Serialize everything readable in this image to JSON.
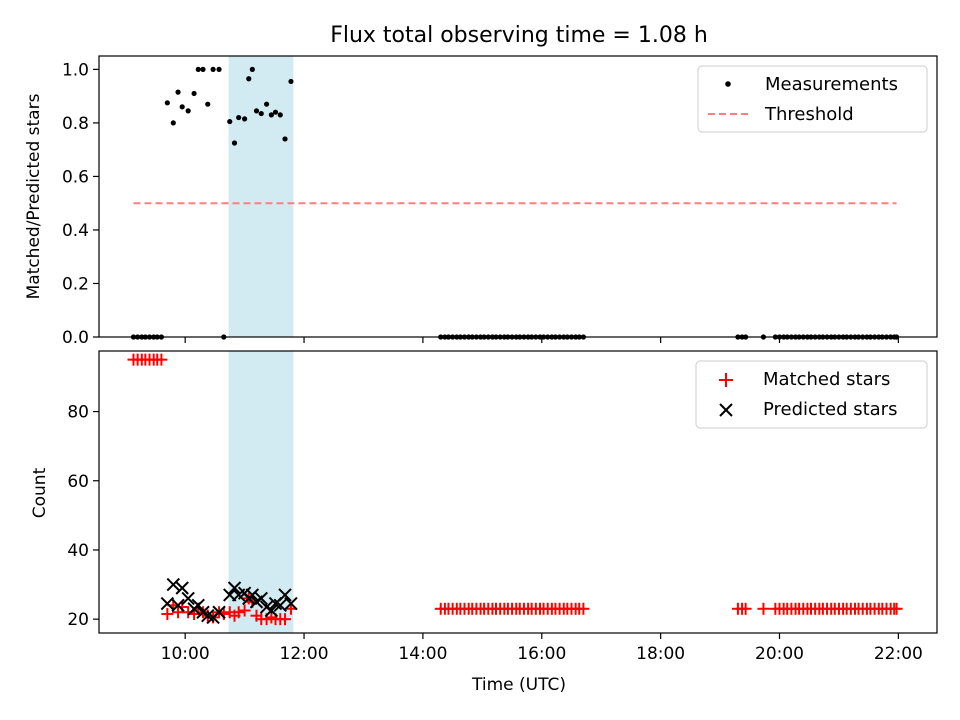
{
  "chart_data": {
    "title": "Flux total observing time = 1.08 h",
    "xlabel": "Time (UTC)",
    "xlim": [
      8.55,
      22.65
    ],
    "x_ticks": [
      10,
      12,
      14,
      16,
      18,
      20,
      22
    ],
    "x_tick_labels": [
      "10:00",
      "12:00",
      "14:00",
      "16:00",
      "18:00",
      "20:00",
      "22:00"
    ],
    "shaded_span": {
      "start": 10.73,
      "end": 11.82,
      "color": "#add8e6"
    },
    "panels": [
      {
        "type": "scatter",
        "ylabel": "Matched/Predicted stars",
        "ylim": [
          0,
          1.05
        ],
        "y_ticks": [
          0.0,
          0.2,
          0.4,
          0.6,
          0.8,
          1.0
        ],
        "y_tick_labels": [
          "0.0",
          "0.2",
          "0.4",
          "0.6",
          "0.8",
          "1.0"
        ],
        "legend": "top-right",
        "series": [
          {
            "name": "Measurements",
            "marker": "dot",
            "color": "#000000",
            "x": [
              9.13,
              9.2,
              9.27,
              9.33,
              9.4,
              9.47,
              9.53,
              9.6,
              9.7,
              9.8,
              9.88,
              9.95,
              10.05,
              10.15,
              10.22,
              10.3,
              10.38,
              10.47,
              10.57,
              10.65,
              10.75,
              10.83,
              10.9,
              11.0,
              11.07,
              11.13,
              11.2,
              11.28,
              11.37,
              11.45,
              11.52,
              11.6,
              11.68,
              11.78,
              14.3,
              14.37,
              14.43,
              14.5,
              14.57,
              14.63,
              14.7,
              14.77,
              14.83,
              14.9,
              14.97,
              15.03,
              15.1,
              15.17,
              15.23,
              15.3,
              15.37,
              15.43,
              15.5,
              15.57,
              15.63,
              15.7,
              15.77,
              15.83,
              15.9,
              15.97,
              16.03,
              16.1,
              16.17,
              16.23,
              16.3,
              16.37,
              16.43,
              16.5,
              16.57,
              16.63,
              16.7,
              19.3,
              19.37,
              19.43,
              19.73,
              19.93,
              20.0,
              20.07,
              20.13,
              20.2,
              20.27,
              20.33,
              20.4,
              20.47,
              20.53,
              20.6,
              20.67,
              20.73,
              20.8,
              20.87,
              20.93,
              21.0,
              21.07,
              21.13,
              21.2,
              21.27,
              21.33,
              21.4,
              21.47,
              21.53,
              21.6,
              21.67,
              21.73,
              21.8,
              21.87,
              21.93,
              21.97
            ],
            "y": [
              0,
              0,
              0,
              0,
              0,
              0,
              0,
              0,
              0.875,
              0.8,
              0.915,
              0.86,
              0.845,
              0.91,
              1.0,
              1.0,
              0.87,
              1.0,
              1.0,
              0.0,
              0.805,
              0.725,
              0.82,
              0.815,
              0.965,
              1.0,
              0.845,
              0.835,
              0.87,
              0.83,
              0.84,
              0.83,
              0.74,
              0.955,
              0,
              0,
              0,
              0,
              0,
              0,
              0,
              0,
              0,
              0,
              0,
              0,
              0,
              0,
              0,
              0,
              0,
              0,
              0,
              0,
              0,
              0,
              0,
              0,
              0,
              0,
              0,
              0,
              0,
              0,
              0,
              0,
              0,
              0,
              0,
              0,
              0,
              0,
              0,
              0,
              0,
              0,
              0,
              0,
              0,
              0,
              0,
              0,
              0,
              0,
              0,
              0,
              0,
              0,
              0,
              0,
              0,
              0,
              0,
              0,
              0,
              0,
              0,
              0,
              0,
              0,
              0,
              0,
              0,
              0,
              0,
              0,
              0
            ]
          },
          {
            "name": "Threshold",
            "marker": "dashed-line",
            "color": "#ff7f7f",
            "x": [
              9.13,
              21.97
            ],
            "y": [
              0.5,
              0.5
            ]
          }
        ]
      },
      {
        "type": "scatter",
        "ylabel": "Count",
        "ylim": [
          16,
          97.5
        ],
        "y_ticks": [
          20,
          40,
          60,
          80
        ],
        "y_tick_labels": [
          "20",
          "40",
          "60",
          "80"
        ],
        "legend": "top-right",
        "series": [
          {
            "name": "Matched stars",
            "marker": "plus",
            "color": "#ff0000",
            "x": [
              9.13,
              9.2,
              9.27,
              9.33,
              9.4,
              9.47,
              9.53,
              9.6,
              9.7,
              9.8,
              9.88,
              9.95,
              10.05,
              10.15,
              10.22,
              10.3,
              10.38,
              10.47,
              10.57,
              10.65,
              10.75,
              10.83,
              10.9,
              11.0,
              11.07,
              11.13,
              11.2,
              11.28,
              11.37,
              11.45,
              11.52,
              11.6,
              11.68,
              11.78,
              14.3,
              14.37,
              14.43,
              14.5,
              14.57,
              14.63,
              14.7,
              14.77,
              14.83,
              14.9,
              14.97,
              15.03,
              15.1,
              15.17,
              15.23,
              15.3,
              15.37,
              15.43,
              15.5,
              15.57,
              15.63,
              15.7,
              15.77,
              15.83,
              15.9,
              15.97,
              16.03,
              16.1,
              16.17,
              16.23,
              16.3,
              16.37,
              16.43,
              16.5,
              16.57,
              16.63,
              16.7,
              19.3,
              19.37,
              19.43,
              19.73,
              19.93,
              20.0,
              20.07,
              20.13,
              20.2,
              20.27,
              20.33,
              20.4,
              20.47,
              20.53,
              20.6,
              20.67,
              20.73,
              20.8,
              20.87,
              20.93,
              21.0,
              21.07,
              21.13,
              21.2,
              21.27,
              21.33,
              21.4,
              21.47,
              21.53,
              21.6,
              21.67,
              21.73,
              21.8,
              21.87,
              21.93,
              21.97
            ],
            "y": [
              95,
              95,
              95,
              95,
              95,
              95,
              95,
              95,
              21.5,
              24,
              22,
              23.5,
              22,
              21.5,
              23,
              22,
              21,
              20.5,
              22,
              21.5,
              22,
              21,
              22,
              22.5,
              26,
              25,
              21,
              20,
              20,
              20.5,
              20,
              20,
              20,
              23,
              23,
              23,
              23,
              23,
              23,
              23,
              23,
              23,
              23,
              23,
              23,
              23,
              23,
              23,
              23,
              23,
              23,
              23,
              23,
              23,
              23,
              23,
              23,
              23,
              23,
              23,
              23,
              23,
              23,
              23,
              23,
              23,
              23,
              23,
              23,
              23,
              23,
              23,
              23,
              23,
              23,
              23,
              23,
              23,
              23,
              23,
              23,
              23,
              23,
              23,
              23,
              23,
              23,
              23,
              23,
              23,
              23,
              23,
              23,
              23,
              23,
              23,
              23,
              23,
              23,
              23,
              23,
              23,
              23,
              23,
              23,
              23,
              23
            ]
          },
          {
            "name": "Predicted stars",
            "marker": "x",
            "color": "#000000",
            "x": [
              9.7,
              9.8,
              9.88,
              9.95,
              10.05,
              10.15,
              10.22,
              10.3,
              10.38,
              10.47,
              10.57,
              10.75,
              10.83,
              10.9,
              11.0,
              11.07,
              11.13,
              11.2,
              11.28,
              11.37,
              11.45,
              11.52,
              11.6,
              11.68,
              11.78
            ],
            "y": [
              24.5,
              30,
              24,
              29,
              26,
              23,
              24,
              22,
              21,
              20.5,
              22,
              27,
              29,
              27,
              27.5,
              26,
              27,
              25,
              26,
              23.5,
              22.5,
              24.5,
              24,
              27,
              24.5
            ]
          }
        ]
      }
    ]
  }
}
